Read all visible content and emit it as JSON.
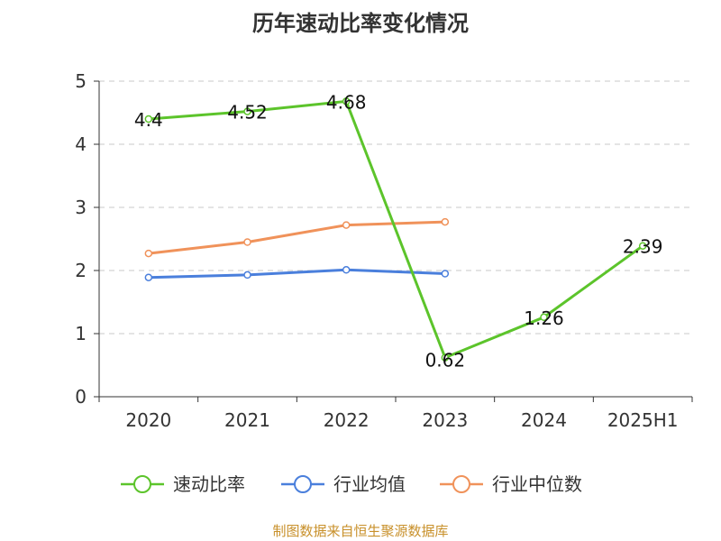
{
  "title": "历年速动比率变化情况",
  "source_note": "制图数据来自恒生聚源数据库",
  "chart_data": {
    "type": "line",
    "title": "历年速动比率变化情况",
    "categories": [
      "2020",
      "2021",
      "2022",
      "2023",
      "2024",
      "2025H1"
    ],
    "ylim": [
      0,
      5
    ],
    "yticks": [
      0,
      1,
      2,
      3,
      4,
      5
    ],
    "grid": true,
    "legend_position": "bottom",
    "series": [
      {
        "name": "速动比率",
        "color": "#5cc42b",
        "values": [
          4.4,
          4.52,
          4.68,
          0.62,
          1.26,
          2.39
        ],
        "labels": [
          "4.4",
          "4.52",
          "4.68",
          "0.62",
          "1.26",
          "2.39"
        ]
      },
      {
        "name": "行业均值",
        "color": "#4a7fdc",
        "values": [
          1.89,
          1.93,
          2.01,
          1.95,
          null,
          null
        ]
      },
      {
        "name": "行业中位数",
        "color": "#f0925a",
        "values": [
          2.27,
          2.45,
          2.72,
          2.77,
          null,
          null
        ]
      }
    ]
  }
}
